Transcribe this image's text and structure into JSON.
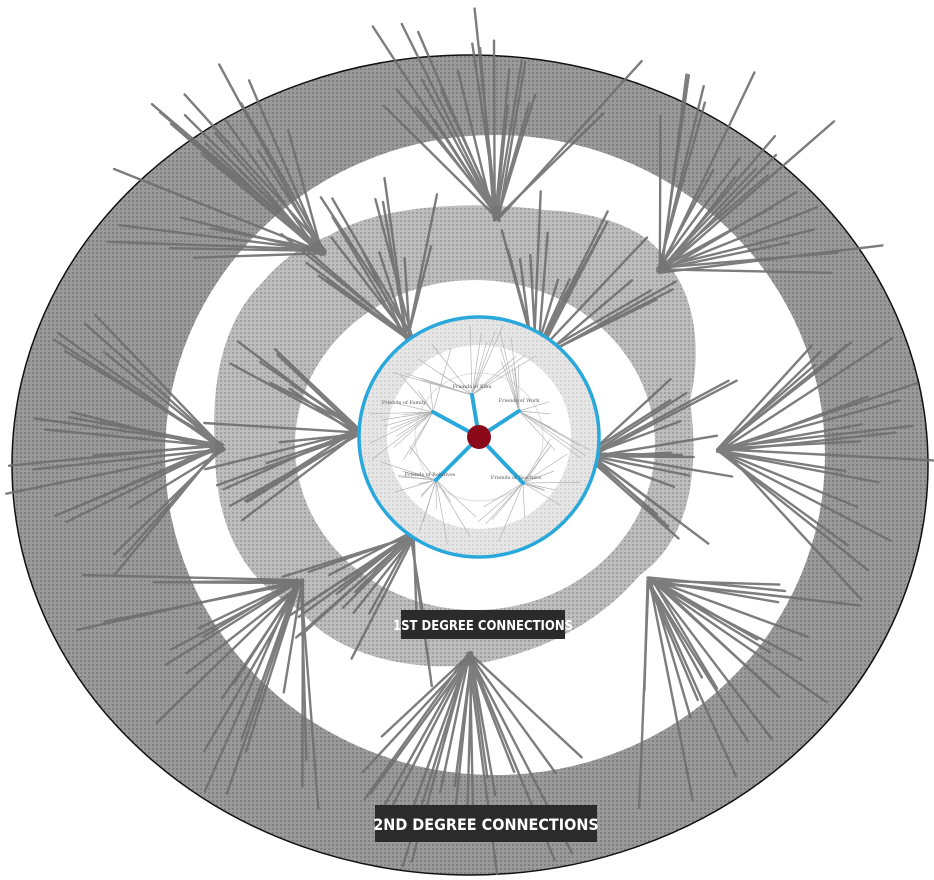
{
  "diagram": {
    "title": "",
    "center_node": {
      "color": "#8b0a1a"
    },
    "inner_labels": [
      {
        "text": "Friends of Kiba"
      },
      {
        "text": "Friends of Family"
      },
      {
        "text": "Friends of Work"
      },
      {
        "text": "Friends of Relatives"
      },
      {
        "text": "Friends of Teachers"
      }
    ],
    "labels": {
      "first_degree": "1ST DEGREE CONNECTIONS",
      "second_degree": "2ND DEGREE CONNECTIONS"
    },
    "colors": {
      "outer_fill": "#8a8a8a",
      "middle_fill": "#a8a8a8",
      "ring": "#29a8dc",
      "edges": "#6f6f6f",
      "label_bg": "#2b2b2b",
      "label_text": "#ffffff"
    }
  }
}
